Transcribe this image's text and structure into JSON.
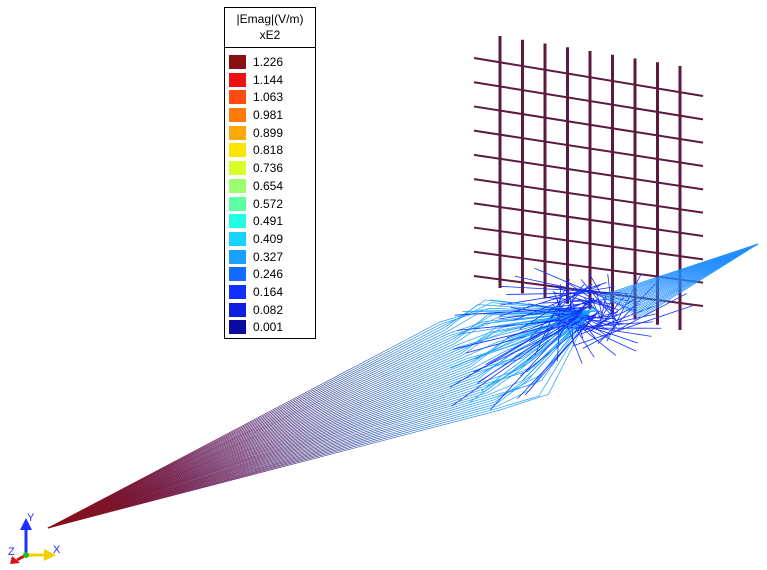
{
  "legend": {
    "title": "|Emag|(V/m)",
    "scale": "xE2",
    "entries": [
      {
        "value": "1.226",
        "color": "#8b0f12"
      },
      {
        "value": "1.144",
        "color": "#ee1111"
      },
      {
        "value": "1.063",
        "color": "#ff4a10"
      },
      {
        "value": "0.981",
        "color": "#ff7a0a"
      },
      {
        "value": "0.899",
        "color": "#ffa80c"
      },
      {
        "value": "0.818",
        "color": "#ffe400"
      },
      {
        "value": "0.736",
        "color": "#d8ff2a"
      },
      {
        "value": "0.654",
        "color": "#9cff6e"
      },
      {
        "value": "0.572",
        "color": "#5cffa4"
      },
      {
        "value": "0.491",
        "color": "#22ffe4"
      },
      {
        "value": "0.409",
        "color": "#18d2ff"
      },
      {
        "value": "0.327",
        "color": "#1aa0ff"
      },
      {
        "value": "0.246",
        "color": "#136cff"
      },
      {
        "value": "0.164",
        "color": "#1030ff"
      },
      {
        "value": "0.082",
        "color": "#0e1ee0"
      },
      {
        "value": "0.001",
        "color": "#0a0aa0"
      }
    ]
  },
  "triad": {
    "x_label": "X",
    "y_label": "Y",
    "z_label": "Z"
  },
  "colors": {
    "grid": "#5c1a3e",
    "high_field": "#8b0f12",
    "mid_field": "#1aa0ff",
    "low_field": "#1030ff"
  }
}
